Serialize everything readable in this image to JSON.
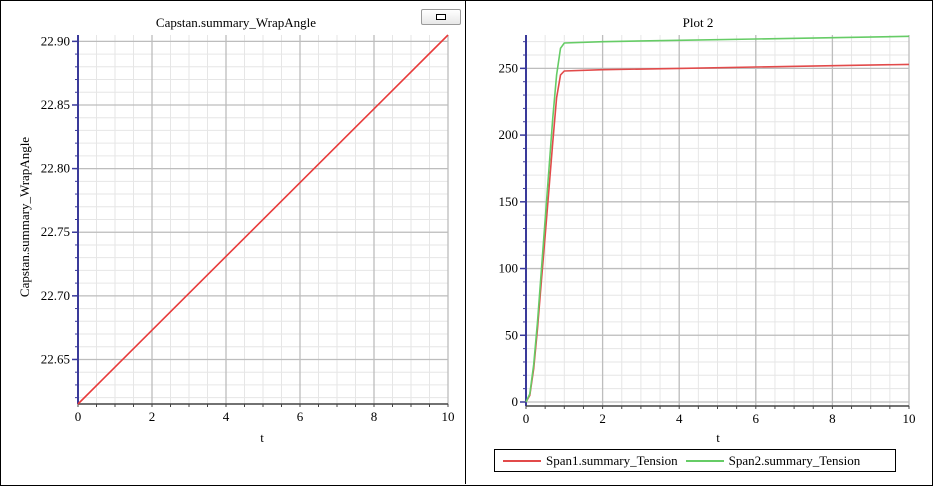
{
  "colors": {
    "span1": "#e24a4a",
    "span2": "#66cc66",
    "wrap": "#e83a3a",
    "grid_major": "#bdbdbd",
    "grid_minor": "#e6e6e6",
    "axis": "#3a3a9a"
  },
  "chart_data": [
    {
      "type": "line",
      "title": "Capstan.summary_WrapAngle",
      "xlabel": "t",
      "ylabel": "Capstan.summary_WrapAngle",
      "xlim": [
        0,
        10
      ],
      "ylim": [
        22.615,
        22.905
      ],
      "xticks": [
        "0",
        "2",
        "4",
        "6",
        "8",
        "10"
      ],
      "yticks": [
        "22.65",
        "22.70",
        "22.75",
        "22.80",
        "22.85",
        "22.90"
      ],
      "ytick_values": [
        22.65,
        22.7,
        22.75,
        22.8,
        22.85,
        22.9
      ],
      "xtick_values": [
        0,
        2,
        4,
        6,
        8,
        10
      ],
      "grid": true,
      "series": [
        {
          "x": [
            0,
            10
          ],
          "y": [
            22.615,
            22.905
          ],
          "color": "#e83a3a"
        }
      ]
    },
    {
      "type": "line",
      "title": "Plot 2",
      "xlabel": "t",
      "ylabel": "",
      "xlim": [
        0,
        10
      ],
      "ylim": [
        -3,
        275
      ],
      "xticks": [
        "0",
        "2",
        "4",
        "6",
        "8",
        "10"
      ],
      "yticks": [
        "0",
        "50",
        "100",
        "150",
        "200",
        "250"
      ],
      "ytick_values": [
        0,
        50,
        100,
        150,
        200,
        250
      ],
      "xtick_values": [
        0,
        2,
        4,
        6,
        8,
        10
      ],
      "grid": true,
      "legend_position": "bottom",
      "series": [
        {
          "name": "Span1.summary_Tension",
          "color": "#e24a4a",
          "x": [
            0,
            0.1,
            0.2,
            0.3,
            0.4,
            0.5,
            0.6,
            0.7,
            0.8,
            0.9,
            1.0,
            2,
            4,
            6,
            8,
            10
          ],
          "y": [
            0,
            5,
            25,
            55,
            90,
            125,
            160,
            195,
            228,
            245,
            248,
            249,
            250,
            251,
            252,
            253
          ]
        },
        {
          "name": "Span2.summary_Tension",
          "color": "#66cc66",
          "x": [
            0,
            0.1,
            0.2,
            0.3,
            0.4,
            0.5,
            0.6,
            0.7,
            0.8,
            0.9,
            1.0,
            2,
            4,
            6,
            8,
            10
          ],
          "y": [
            0,
            6,
            28,
            60,
            98,
            137,
            175,
            213,
            245,
            265,
            269,
            270,
            271,
            272,
            273,
            274
          ]
        }
      ]
    }
  ]
}
